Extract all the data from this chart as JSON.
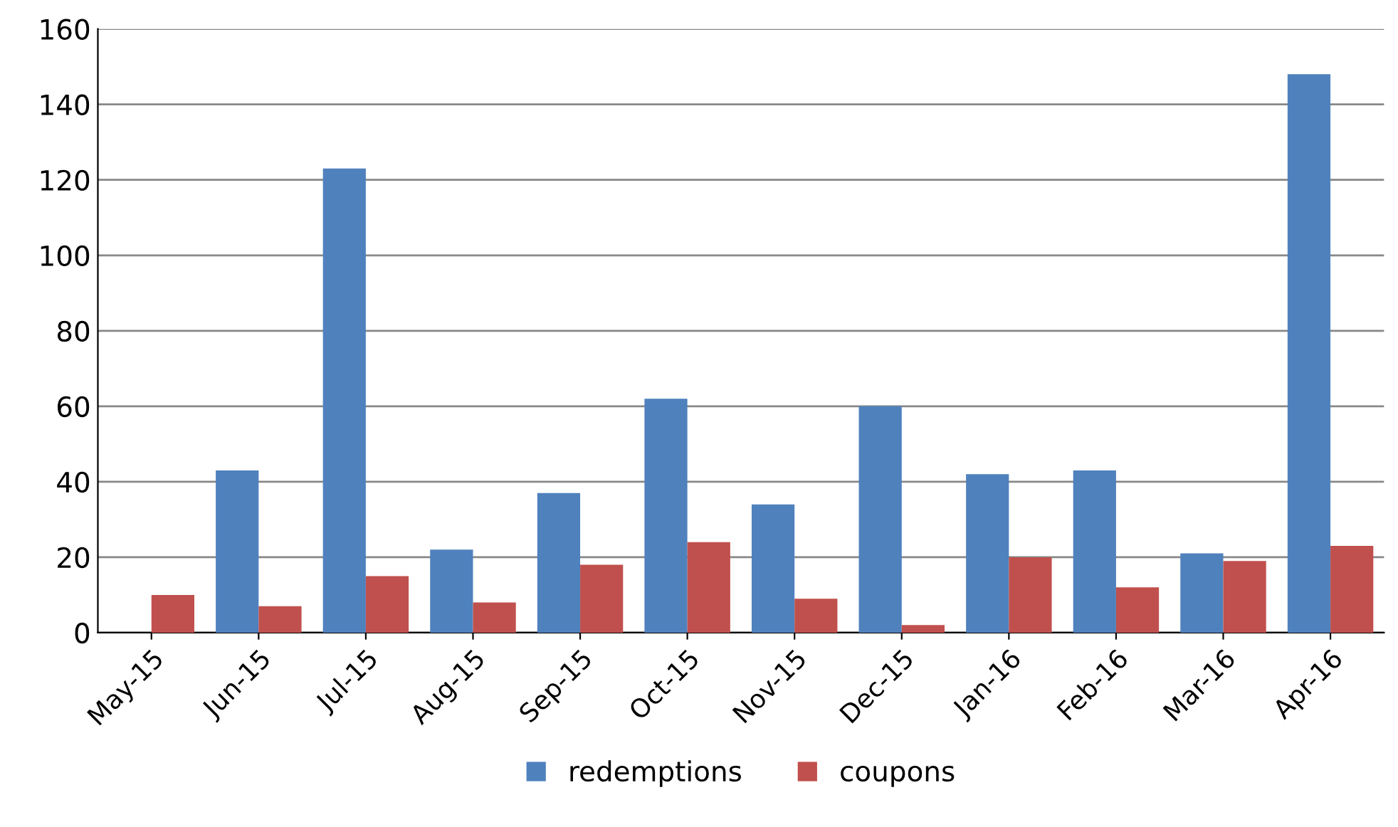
{
  "chart_data": {
    "type": "bar",
    "categories": [
      "May-15",
      "Jun-15",
      "Jul-15",
      "Aug-15",
      "Sep-15",
      "Oct-15",
      "Nov-15",
      "Dec-15",
      "Jan-16",
      "Feb-16",
      "Mar-16",
      "Apr-16"
    ],
    "series": [
      {
        "name": "redemptions",
        "color": "#4f81bd",
        "values": [
          0,
          43,
          123,
          22,
          37,
          62,
          34,
          60,
          42,
          43,
          21,
          148
        ]
      },
      {
        "name": "coupons",
        "color": "#c0504d",
        "values": [
          10,
          7,
          15,
          8,
          18,
          24,
          9,
          2,
          20,
          12,
          19,
          23
        ]
      }
    ],
    "ylim": [
      0,
      160
    ],
    "yticks": [
      0,
      20,
      40,
      60,
      80,
      100,
      120,
      140,
      160
    ],
    "grid": "y",
    "legend": "bottom"
  }
}
